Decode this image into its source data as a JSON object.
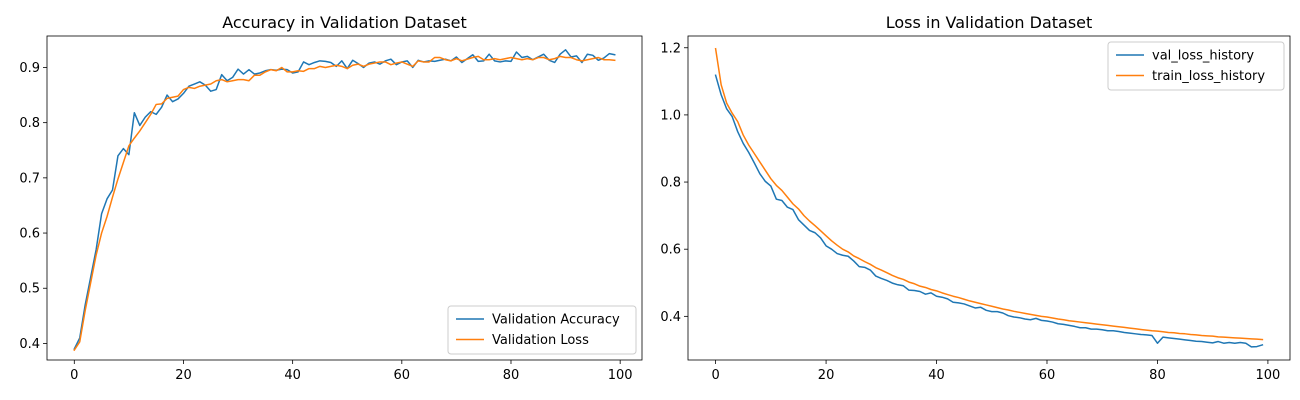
{
  "colors": {
    "series_1": "#1f77b4",
    "series_2": "#ff7f0e"
  },
  "chart_data": [
    {
      "type": "line",
      "title": "Accuracy in Validation Dataset",
      "xlim": [
        -5,
        104
      ],
      "ylim": [
        0.37,
        0.957
      ],
      "x_ticks": [
        0,
        20,
        40,
        60,
        80,
        100
      ],
      "y_ticks": [
        0.4,
        0.5,
        0.6,
        0.7,
        0.8,
        0.9
      ],
      "y_tick_labels": [
        "0.4",
        "0.5",
        "0.6",
        "0.7",
        "0.8",
        "0.9"
      ],
      "legend_position": "lower-right",
      "series": [
        {
          "name": "Validation Accuracy",
          "color": "#1f77b4",
          "values": [
            0.39,
            0.41,
            0.47,
            0.52,
            0.57,
            0.635,
            0.662,
            0.678,
            0.74,
            0.753,
            0.742,
            0.818,
            0.795,
            0.81,
            0.82,
            0.815,
            0.828,
            0.85,
            0.838,
            0.843,
            0.853,
            0.866,
            0.87,
            0.874,
            0.868,
            0.857,
            0.86,
            0.887,
            0.876,
            0.882,
            0.897,
            0.888,
            0.896,
            0.888,
            0.89,
            0.894,
            0.896,
            0.895,
            0.897,
            0.896,
            0.89,
            0.892,
            0.91,
            0.905,
            0.909,
            0.912,
            0.911,
            0.909,
            0.902,
            0.912,
            0.898,
            0.913,
            0.907,
            0.9,
            0.908,
            0.91,
            0.906,
            0.912,
            0.915,
            0.905,
            0.91,
            0.912,
            0.9,
            0.913,
            0.91,
            0.912,
            0.911,
            0.913,
            0.915,
            0.912,
            0.919,
            0.909,
            0.916,
            0.923,
            0.911,
            0.912,
            0.924,
            0.912,
            0.91,
            0.912,
            0.911,
            0.928,
            0.918,
            0.92,
            0.914,
            0.919,
            0.924,
            0.913,
            0.909,
            0.924,
            0.932,
            0.919,
            0.921,
            0.909,
            0.924,
            0.922,
            0.913,
            0.917,
            0.925,
            0.923
          ]
        },
        {
          "name": "Validation Loss",
          "color": "#ff7f0e",
          "values": [
            0.388,
            0.403,
            0.46,
            0.51,
            0.56,
            0.6,
            0.63,
            0.665,
            0.698,
            0.728,
            0.758,
            0.772,
            0.785,
            0.8,
            0.815,
            0.833,
            0.834,
            0.844,
            0.846,
            0.848,
            0.86,
            0.864,
            0.862,
            0.866,
            0.868,
            0.87,
            0.876,
            0.878,
            0.874,
            0.876,
            0.878,
            0.878,
            0.876,
            0.886,
            0.886,
            0.892,
            0.896,
            0.894,
            0.9,
            0.892,
            0.892,
            0.894,
            0.893,
            0.898,
            0.898,
            0.902,
            0.9,
            0.902,
            0.904,
            0.902,
            0.898,
            0.904,
            0.906,
            0.902,
            0.906,
            0.908,
            0.91,
            0.91,
            0.905,
            0.908,
            0.91,
            0.906,
            0.902,
            0.912,
            0.91,
            0.91,
            0.918,
            0.918,
            0.914,
            0.912,
            0.916,
            0.912,
            0.915,
            0.918,
            0.92,
            0.914,
            0.914,
            0.916,
            0.914,
            0.916,
            0.918,
            0.916,
            0.914,
            0.916,
            0.914,
            0.918,
            0.918,
            0.914,
            0.916,
            0.92,
            0.918,
            0.918,
            0.914,
            0.912,
            0.914,
            0.916,
            0.918,
            0.914,
            0.914,
            0.913
          ]
        }
      ]
    },
    {
      "type": "line",
      "title": "Loss in Validation Dataset",
      "xlim": [
        -5,
        104
      ],
      "ylim": [
        0.27,
        1.235
      ],
      "x_ticks": [
        0,
        20,
        40,
        60,
        80,
        100
      ],
      "y_ticks": [
        0.4,
        0.6,
        0.8,
        1.0,
        1.2
      ],
      "y_tick_labels": [
        "0.4",
        "0.6",
        "0.8",
        "1.0",
        "1.2"
      ],
      "legend_position": "upper-right",
      "series": [
        {
          "name": "val_loss_history",
          "color": "#1f77b4",
          "values": [
            1.118,
            1.06,
            1.018,
            0.995,
            0.95,
            0.915,
            0.888,
            0.857,
            0.825,
            0.802,
            0.788,
            0.749,
            0.745,
            0.725,
            0.718,
            0.688,
            0.672,
            0.656,
            0.649,
            0.634,
            0.61,
            0.6,
            0.587,
            0.582,
            0.579,
            0.565,
            0.548,
            0.546,
            0.538,
            0.52,
            0.513,
            0.507,
            0.499,
            0.494,
            0.491,
            0.478,
            0.477,
            0.474,
            0.466,
            0.47,
            0.46,
            0.457,
            0.452,
            0.442,
            0.44,
            0.437,
            0.431,
            0.425,
            0.427,
            0.418,
            0.414,
            0.414,
            0.41,
            0.402,
            0.398,
            0.396,
            0.392,
            0.39,
            0.394,
            0.388,
            0.386,
            0.383,
            0.378,
            0.376,
            0.373,
            0.37,
            0.366,
            0.366,
            0.362,
            0.362,
            0.36,
            0.357,
            0.357,
            0.355,
            0.352,
            0.35,
            0.348,
            0.346,
            0.345,
            0.343,
            0.32,
            0.338,
            0.336,
            0.334,
            0.332,
            0.33,
            0.328,
            0.326,
            0.325,
            0.323,
            0.321,
            0.325,
            0.32,
            0.322,
            0.32,
            0.322,
            0.32,
            0.309,
            0.31,
            0.315
          ]
        },
        {
          "name": "train_loss_history",
          "color": "#ff7f0e",
          "values": [
            1.197,
            1.09,
            1.035,
            1.005,
            0.98,
            0.94,
            0.91,
            0.885,
            0.86,
            0.835,
            0.81,
            0.79,
            0.775,
            0.755,
            0.735,
            0.72,
            0.7,
            0.684,
            0.67,
            0.655,
            0.64,
            0.625,
            0.612,
            0.6,
            0.592,
            0.58,
            0.572,
            0.563,
            0.555,
            0.545,
            0.538,
            0.53,
            0.522,
            0.515,
            0.51,
            0.502,
            0.497,
            0.49,
            0.486,
            0.48,
            0.476,
            0.47,
            0.465,
            0.46,
            0.456,
            0.451,
            0.446,
            0.442,
            0.438,
            0.434,
            0.43,
            0.426,
            0.422,
            0.419,
            0.415,
            0.412,
            0.409,
            0.406,
            0.403,
            0.4,
            0.398,
            0.395,
            0.392,
            0.39,
            0.387,
            0.385,
            0.383,
            0.381,
            0.379,
            0.377,
            0.375,
            0.373,
            0.371,
            0.369,
            0.367,
            0.365,
            0.363,
            0.361,
            0.359,
            0.357,
            0.356,
            0.354,
            0.352,
            0.351,
            0.349,
            0.348,
            0.346,
            0.345,
            0.343,
            0.342,
            0.341,
            0.339,
            0.338,
            0.337,
            0.336,
            0.335,
            0.334,
            0.333,
            0.332,
            0.331
          ]
        }
      ]
    }
  ]
}
